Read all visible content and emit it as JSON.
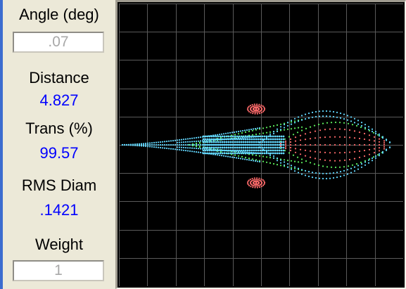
{
  "panel": {
    "angle_label": "Angle (deg)",
    "angle_value": ".07",
    "distance_label": "Distance",
    "distance_value": "4.827",
    "trans_label": "Trans (%)",
    "trans_value": "99.57",
    "rms_label": "RMS Diam",
    "rms_value": ".1421",
    "weight_label": "Weight",
    "weight_value": "1"
  },
  "plot": {
    "grid_cells": 10,
    "grid_color": "#5a5a5a",
    "series_colors": [
      "#63d8ff",
      "#5ef05e",
      "#ff6b6b"
    ]
  }
}
